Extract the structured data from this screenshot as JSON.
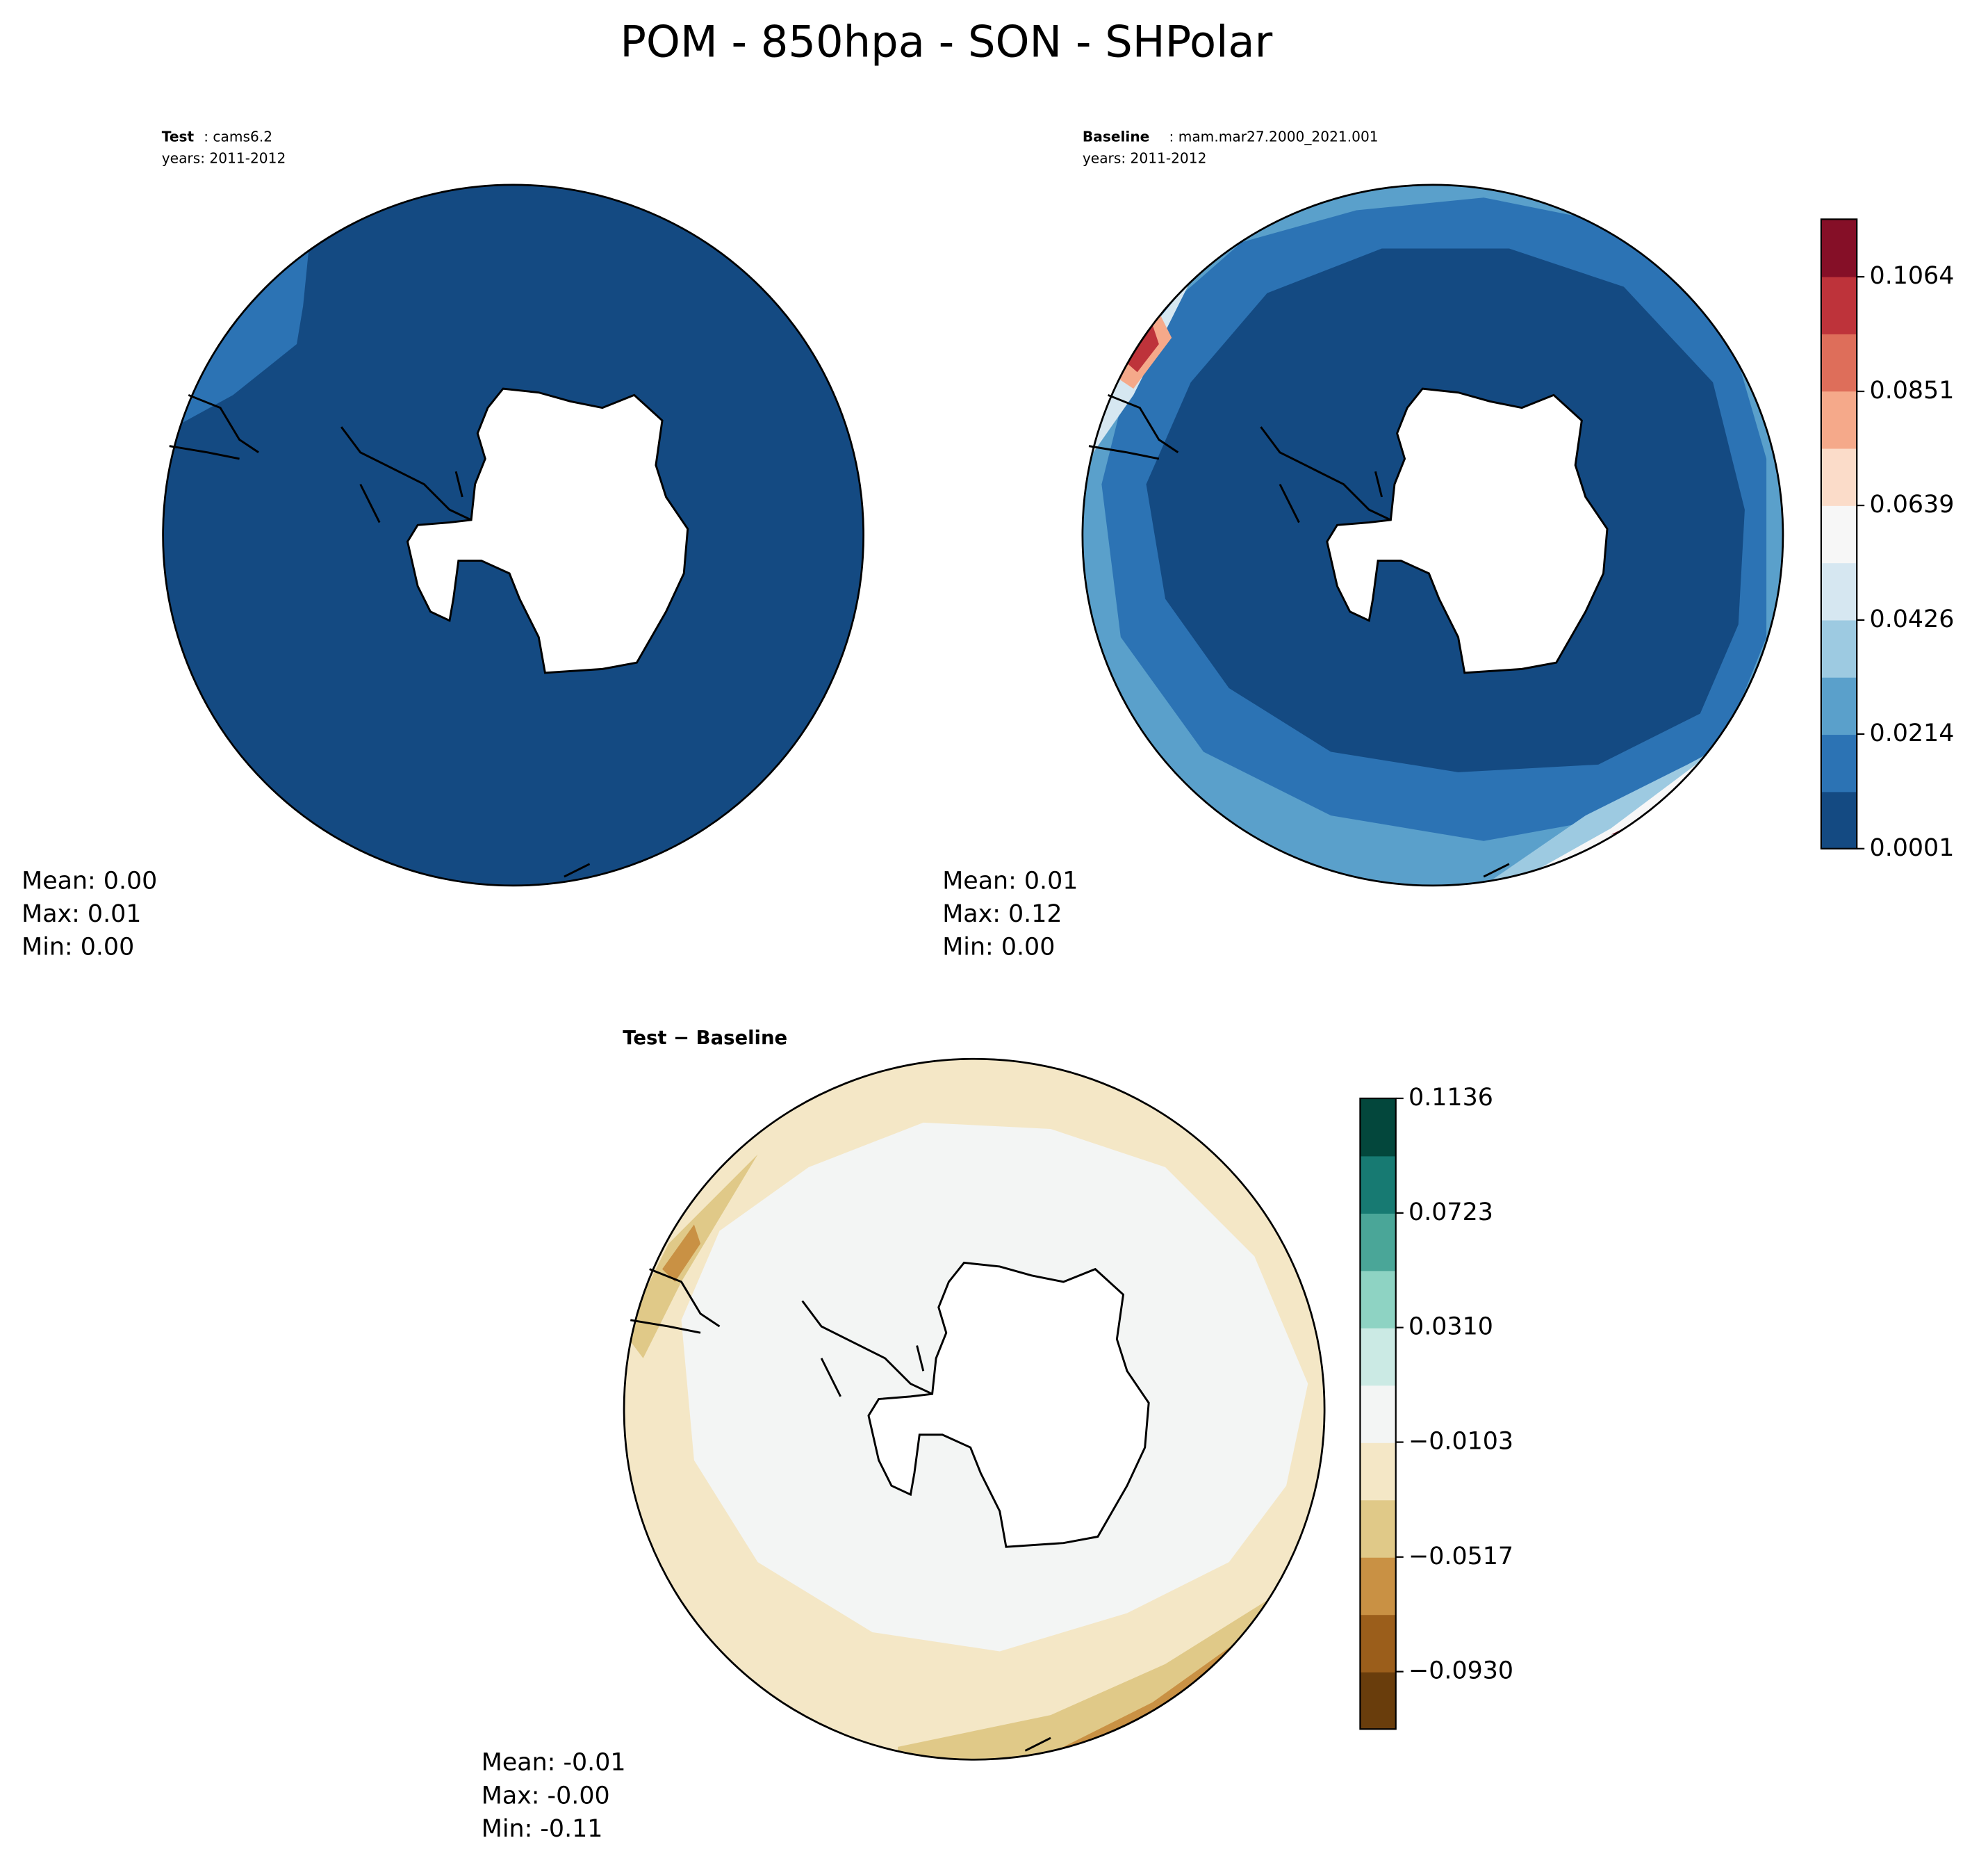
{
  "title": "POM - 850hpa - SON - SHPolar",
  "panels": [
    {
      "label_bold": "Test",
      "label": ": cams6.2",
      "years": "years: 2011-2012",
      "stats": [
        "Mean:  0.00",
        "Max:  0.01",
        "Min:  0.00"
      ]
    },
    {
      "label_bold": "Baseline",
      "label": ": mam.mar27.2000_2021.001",
      "years": "years: 2011-2012",
      "stats": [
        "Mean:  0.01",
        "Max:  0.12",
        "Min:  0.00"
      ]
    },
    {
      "label_bold": "Test − Baseline",
      "stats": [
        "Mean: -0.01",
        "Max: -0.00",
        "Min: -0.11"
      ]
    }
  ],
  "colorbars": [
    {
      "lim": [
        0.0001,
        0.1171
      ],
      "ticks": [
        0.0001,
        0.0214,
        0.0426,
        0.0639,
        0.0851,
        0.1064
      ],
      "colors": [
        "#144a82",
        "#2c73b4",
        "#5aa0cb",
        "#9dcae1",
        "#d6e7f1",
        "#f7f7f7",
        "#fbdcc9",
        "#f5a98a",
        "#de6e5a",
        "#be333a",
        "#850f27"
      ]
    },
    {
      "lim": [
        -0.1137,
        0.1136
      ],
      "ticks": [
        {
          "value": -0.093,
          "label": "−0.0930"
        },
        {
          "value": -0.0517,
          "label": "−0.0517"
        },
        {
          "value": -0.0103,
          "label": "−0.0103"
        },
        {
          "value": 0.031,
          "label": "0.0310"
        },
        0.0723,
        0.1136
      ],
      "colors": [
        "#693d0c",
        "#9b5e1b",
        "#c99144",
        "#e0c988",
        "#f4e7c6",
        "#f3f5f4",
        "#cbeae4",
        "#8ed3c3",
        "#4aa698",
        "#177a72",
        "#03473c"
      ]
    }
  ]
}
